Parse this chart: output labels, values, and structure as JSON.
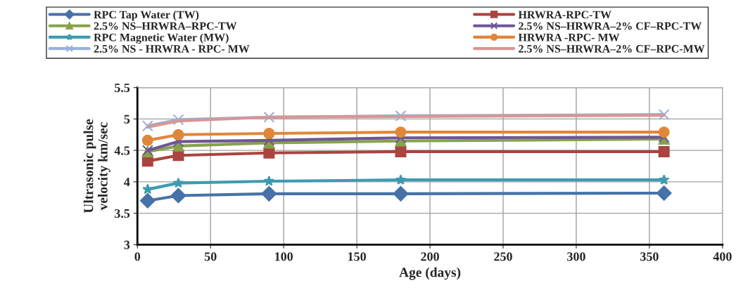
{
  "chart_data": {
    "type": "line",
    "xlabel": "Age (days)",
    "ylabel": "Ultrasonic pulse\nvelocity km/sec",
    "x": [
      7,
      28,
      90,
      180,
      360
    ],
    "xlim": [
      0,
      400
    ],
    "xticks": [
      0,
      50,
      100,
      150,
      200,
      250,
      300,
      350,
      400
    ],
    "ylim": [
      3,
      5.5
    ],
    "yticks": [
      3,
      3.5,
      4,
      4.5,
      5,
      5.5
    ],
    "grid": true,
    "legend": "top",
    "line_style": "solid",
    "series": [
      {
        "name": "RPC Tap Water (TW)",
        "color": "#4672a8",
        "marker": "diamond",
        "values": [
          3.7,
          3.78,
          3.81,
          3.81,
          3.82
        ]
      },
      {
        "name": "HRWRA-RPC-TW",
        "color": "#a9443f",
        "marker": "square",
        "values": [
          4.33,
          4.42,
          4.46,
          4.48,
          4.48
        ]
      },
      {
        "name": "2.5% NS–HRWRA–RPC-TW",
        "color": "#87a34a",
        "marker": "triangle",
        "values": [
          4.48,
          4.57,
          4.62,
          4.65,
          4.68
        ]
      },
      {
        "name": "2.5% NS–HRWRA–2% CF–RPC-TW",
        "color": "#6e5696",
        "marker": "cross",
        "values": [
          4.5,
          4.64,
          4.66,
          4.7,
          4.71
        ]
      },
      {
        "name": "RPC Magnetic Water (MW)",
        "color": "#3e9bb0",
        "marker": "star",
        "values": [
          3.88,
          3.98,
          4.01,
          4.03,
          4.03
        ]
      },
      {
        "name": "HRWRA -RPC- MW",
        "color": "#e0863a",
        "marker": "circle",
        "values": [
          4.66,
          4.75,
          4.77,
          4.79,
          4.79
        ]
      },
      {
        "name": "2.5% NS - HRWRA - RPC- MW",
        "color": "#97b2dc",
        "marker": "cross",
        "values": [
          4.89,
          4.99,
          5.03,
          5.05,
          5.07
        ]
      },
      {
        "name": "2.5% NS–HRWRA–2% CF–RPC-MW",
        "color": "#d99594",
        "marker": "none",
        "values": [
          4.87,
          4.97,
          5.03,
          5.04,
          5.06
        ]
      }
    ]
  }
}
